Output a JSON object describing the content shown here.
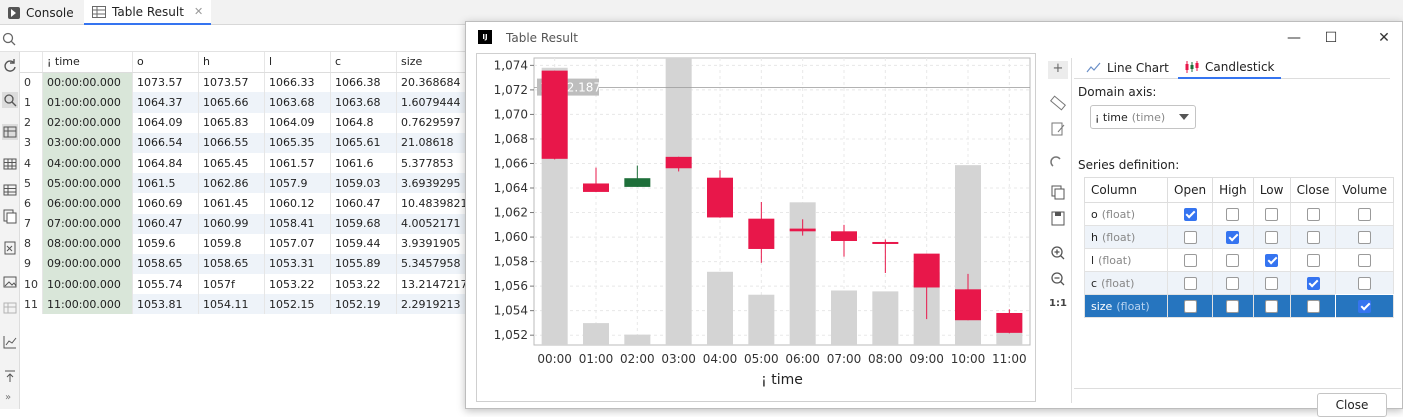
{
  "tabs": {
    "console": "Console",
    "table_result": "Table Result"
  },
  "grid": {
    "columns": [
      "¡ time",
      "o",
      "h",
      "l",
      "c",
      "size"
    ],
    "rows": [
      [
        "0",
        "00:00:00.000",
        "1073.57",
        "1073.57",
        "1066.33",
        "1066.38",
        "20.368684"
      ],
      [
        "1",
        "01:00:00.000",
        "1064.37",
        "1065.66",
        "1063.68",
        "1063.68",
        "1.6079444"
      ],
      [
        "2",
        "02:00:00.000",
        "1064.09",
        "1065.83",
        "1064.09",
        "1064.8",
        "0.7629597"
      ],
      [
        "3",
        "03:00:00.000",
        "1066.54",
        "1066.55",
        "1065.35",
        "1065.61",
        "21.08618"
      ],
      [
        "4",
        "04:00:00.000",
        "1064.84",
        "1065.45",
        "1061.57",
        "1061.6",
        "5.377853"
      ],
      [
        "5",
        "05:00:00.000",
        "1061.5",
        "1062.86",
        "1057.9",
        "1059.03",
        "3.6939295"
      ],
      [
        "6",
        "06:00:00.000",
        "1060.69",
        "1061.45",
        "1060.12",
        "1060.47",
        "10.4839821"
      ],
      [
        "7",
        "07:00:00.000",
        "1060.47",
        "1060.99",
        "1058.41",
        "1059.68",
        "4.0052171"
      ],
      [
        "8",
        "08:00:00.000",
        "1059.6",
        "1059.8",
        "1057.07",
        "1059.44",
        "3.9391905"
      ],
      [
        "9",
        "09:00:00.000",
        "1058.65",
        "1058.65",
        "1053.31",
        "1055.89",
        "5.3457958"
      ],
      [
        "10",
        "10:00:00.000",
        "1055.74",
        "1057f",
        "1053.22",
        "1053.22",
        "13.2147217"
      ],
      [
        "11",
        "11:00:00.000",
        "1053.81",
        "1054.11",
        "1052.15",
        "1052.19",
        "2.2919213"
      ]
    ]
  },
  "window": {
    "title": "Table Result",
    "logo": "IJ"
  },
  "chart_tabs": {
    "line": "Line Chart",
    "candle": "Candlestick"
  },
  "domain_axis": {
    "label": "Domain axis:",
    "value": "¡ time",
    "hint": "(time)"
  },
  "series_def": {
    "label": "Series definition:",
    "headers": [
      "Column",
      "Open",
      "High",
      "Low",
      "Close",
      "Volume"
    ],
    "rows": [
      {
        "col": "o",
        "type": "(float)",
        "checks": [
          true,
          false,
          false,
          false,
          false
        ]
      },
      {
        "col": "h",
        "type": "(float)",
        "checks": [
          false,
          true,
          false,
          false,
          false
        ]
      },
      {
        "col": "l",
        "type": "(float)",
        "checks": [
          false,
          false,
          true,
          false,
          false
        ]
      },
      {
        "col": "c",
        "type": "(float)",
        "checks": [
          false,
          false,
          false,
          true,
          false
        ]
      },
      {
        "col": "size",
        "type": "(float)",
        "checks": [
          false,
          false,
          false,
          false,
          true
        ],
        "selected": true
      }
    ]
  },
  "close_label": "Close",
  "colors": {
    "up": "#1e6f3a",
    "down": "#e8174a",
    "volume": "#d4d4d4",
    "accent": "#3574f0"
  },
  "chart_data": {
    "type": "candlestick",
    "xlabel": "¡ time",
    "ylabel": "",
    "categories": [
      "00:00",
      "01:00",
      "02:00",
      "03:00",
      "04:00",
      "05:00",
      "06:00",
      "07:00",
      "08:00",
      "09:00",
      "10:00",
      "11:00"
    ],
    "open": [
      1073.57,
      1064.37,
      1064.09,
      1066.54,
      1064.84,
      1061.5,
      1060.69,
      1060.47,
      1059.6,
      1058.65,
      1055.74,
      1053.81
    ],
    "high": [
      1073.57,
      1065.66,
      1065.83,
      1066.55,
      1065.45,
      1062.86,
      1061.45,
      1060.99,
      1059.8,
      1058.65,
      1057.0,
      1054.11
    ],
    "low": [
      1066.33,
      1063.68,
      1064.09,
      1065.35,
      1061.57,
      1057.9,
      1060.12,
      1058.41,
      1057.07,
      1053.31,
      1053.22,
      1052.15
    ],
    "close": [
      1066.38,
      1063.68,
      1064.8,
      1065.61,
      1061.6,
      1059.03,
      1060.47,
      1059.68,
      1059.44,
      1055.89,
      1053.22,
      1052.19
    ],
    "volume": [
      20.368684,
      1.6079444,
      0.7629597,
      21.08618,
      5.377853,
      3.6939295,
      10.4839821,
      4.0052171,
      3.9391905,
      5.3457958,
      13.2147217,
      2.2919213
    ],
    "yticks": [
      "1,052",
      "1,054",
      "1,056",
      "1,058",
      "1,060",
      "1,062",
      "1,064",
      "1,066",
      "1,068",
      "1,070",
      "1,072",
      "1,074"
    ],
    "ylim": [
      1051.2,
      1074.6
    ],
    "crosshair_value": 1072.187,
    "crosshair_label": "1,072.187"
  }
}
